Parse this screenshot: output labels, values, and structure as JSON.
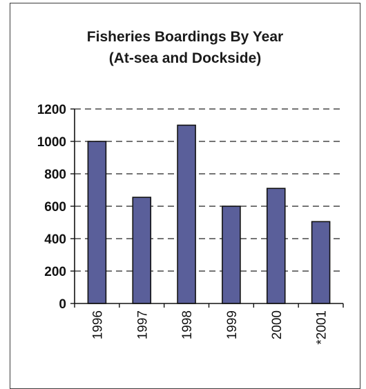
{
  "chart_data": {
    "type": "bar",
    "title": "Fisheries Boardings By Year",
    "subtitle": "(At-sea and Dockside)",
    "categories": [
      "1996",
      "1997",
      "1998",
      "1999",
      "2000",
      "*2001"
    ],
    "values": [
      1000,
      655,
      1100,
      600,
      710,
      505
    ],
    "yticks": [
      0,
      200,
      400,
      600,
      800,
      1000,
      1200
    ],
    "ylim": [
      0,
      1200
    ],
    "grid": "horizontal dashed",
    "bar_color": "#5a5f9a",
    "legend": "none"
  }
}
